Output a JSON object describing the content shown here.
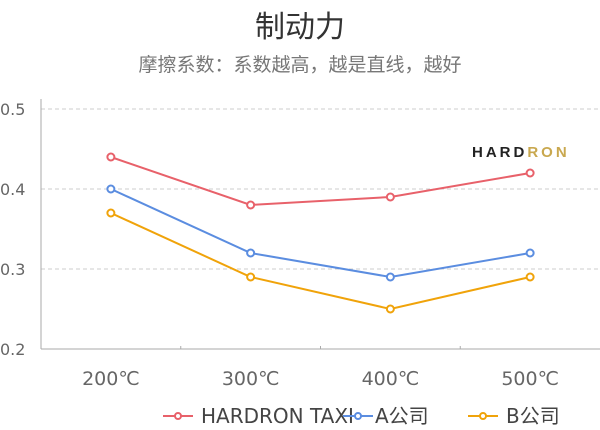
{
  "header": {
    "title": "制动力",
    "subtitle": "摩擦系数：系数越高，越是直线，越好"
  },
  "logo": {
    "part1": "HARD",
    "part2": "RON"
  },
  "colors": {
    "hardron": "#e8616a",
    "a": "#5b8de0",
    "b": "#f0a30a",
    "grid": "#cccccc",
    "axis": "#aaaaaa",
    "text": "#666666"
  },
  "chart_data": {
    "type": "line",
    "title": "制动力",
    "subtitle": "摩擦系数：系数越高，越是直线，越好",
    "categories": [
      "200℃",
      "300℃",
      "400℃",
      "500℃"
    ],
    "series": [
      {
        "name": "HARDRON TAXI",
        "values": [
          0.44,
          0.38,
          0.39,
          0.42
        ],
        "color": "#e8616a"
      },
      {
        "name": "A公司",
        "values": [
          0.4,
          0.32,
          0.29,
          0.32
        ],
        "color": "#5b8de0"
      },
      {
        "name": "B公司",
        "values": [
          0.37,
          0.29,
          0.25,
          0.29
        ],
        "color": "#f0a30a"
      }
    ],
    "ylim": [
      0.2,
      0.5
    ],
    "yticks": [
      "0.5",
      "0.4",
      "0.3",
      "0.2"
    ],
    "xlabel": "",
    "ylabel": "",
    "grid": true,
    "legend_position": "bottom-right"
  }
}
